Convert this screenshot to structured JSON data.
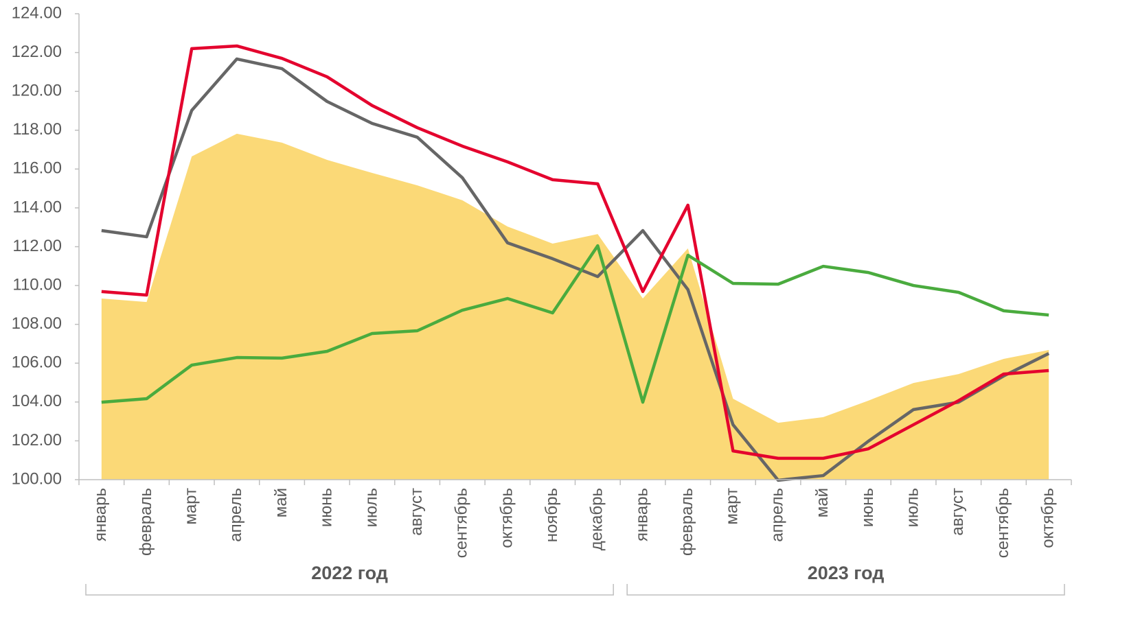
{
  "chart_data": {
    "type": "line",
    "categories": [
      "январь",
      "февраль",
      "март",
      "апрель",
      "май",
      "июнь",
      "июль",
      "август",
      "сентябрь",
      "октябрь",
      "ноябрь",
      "декабрь",
      "январь",
      "февраль",
      "март",
      "апрель",
      "май",
      "июнь",
      "июль",
      "август",
      "сентябрь",
      "октябрь"
    ],
    "groups": [
      {
        "label": "2022 год",
        "span": 12
      },
      {
        "label": "2023 год",
        "span": 10
      }
    ],
    "series": [
      {
        "kind": "area",
        "color": "#fbd977",
        "values": [
          109.33,
          109.15,
          116.65,
          117.82,
          117.36,
          116.47,
          115.8,
          115.16,
          114.39,
          113.04,
          112.16,
          112.65,
          109.33,
          111.91,
          104.17,
          102.93,
          103.22,
          104.07,
          104.98,
          105.44,
          106.22,
          106.68
        ]
      },
      {
        "kind": "line",
        "color": "#666666",
        "values": [
          112.83,
          112.51,
          119.02,
          121.67,
          121.17,
          119.48,
          118.35,
          117.64,
          115.55,
          112.2,
          111.38,
          110.46,
          112.83,
          109.79,
          102.83,
          99.97,
          100.21,
          101.98,
          103.61,
          103.99,
          105.34,
          106.5
        ]
      },
      {
        "kind": "line",
        "color": "#e4032e",
        "values": [
          109.69,
          109.51,
          122.2,
          122.34,
          121.7,
          120.75,
          119.27,
          118.13,
          117.18,
          116.37,
          115.45,
          115.24,
          109.69,
          114.14,
          101.48,
          101.1,
          101.1,
          101.59,
          102.83,
          104.07,
          105.44,
          105.62
        ]
      },
      {
        "kind": "line",
        "color": "#4aab3e",
        "values": [
          103.99,
          104.17,
          105.9,
          106.29,
          106.26,
          106.61,
          107.53,
          107.67,
          108.73,
          109.33,
          108.59,
          112.05,
          103.99,
          111.56,
          110.11,
          110.07,
          110.99,
          110.67,
          110.0,
          109.65,
          108.7,
          108.48
        ]
      }
    ],
    "ylim": [
      100,
      124
    ],
    "yticks": [
      {
        "value": 100,
        "label": "100.00"
      },
      {
        "value": 102,
        "label": "102.00"
      },
      {
        "value": 104,
        "label": "104.00"
      },
      {
        "value": 106,
        "label": "106.00"
      },
      {
        "value": 108,
        "label": "108.00"
      },
      {
        "value": 110,
        "label": "110.00"
      },
      {
        "value": 112,
        "label": "112.00"
      },
      {
        "value": 114,
        "label": "114.00"
      },
      {
        "value": 116,
        "label": "116.00"
      },
      {
        "value": 118,
        "label": "118.00"
      },
      {
        "value": 120,
        "label": "120.00"
      },
      {
        "value": 122,
        "label": "122.00"
      },
      {
        "value": 124,
        "label": "124.00"
      }
    ],
    "grid": false
  }
}
